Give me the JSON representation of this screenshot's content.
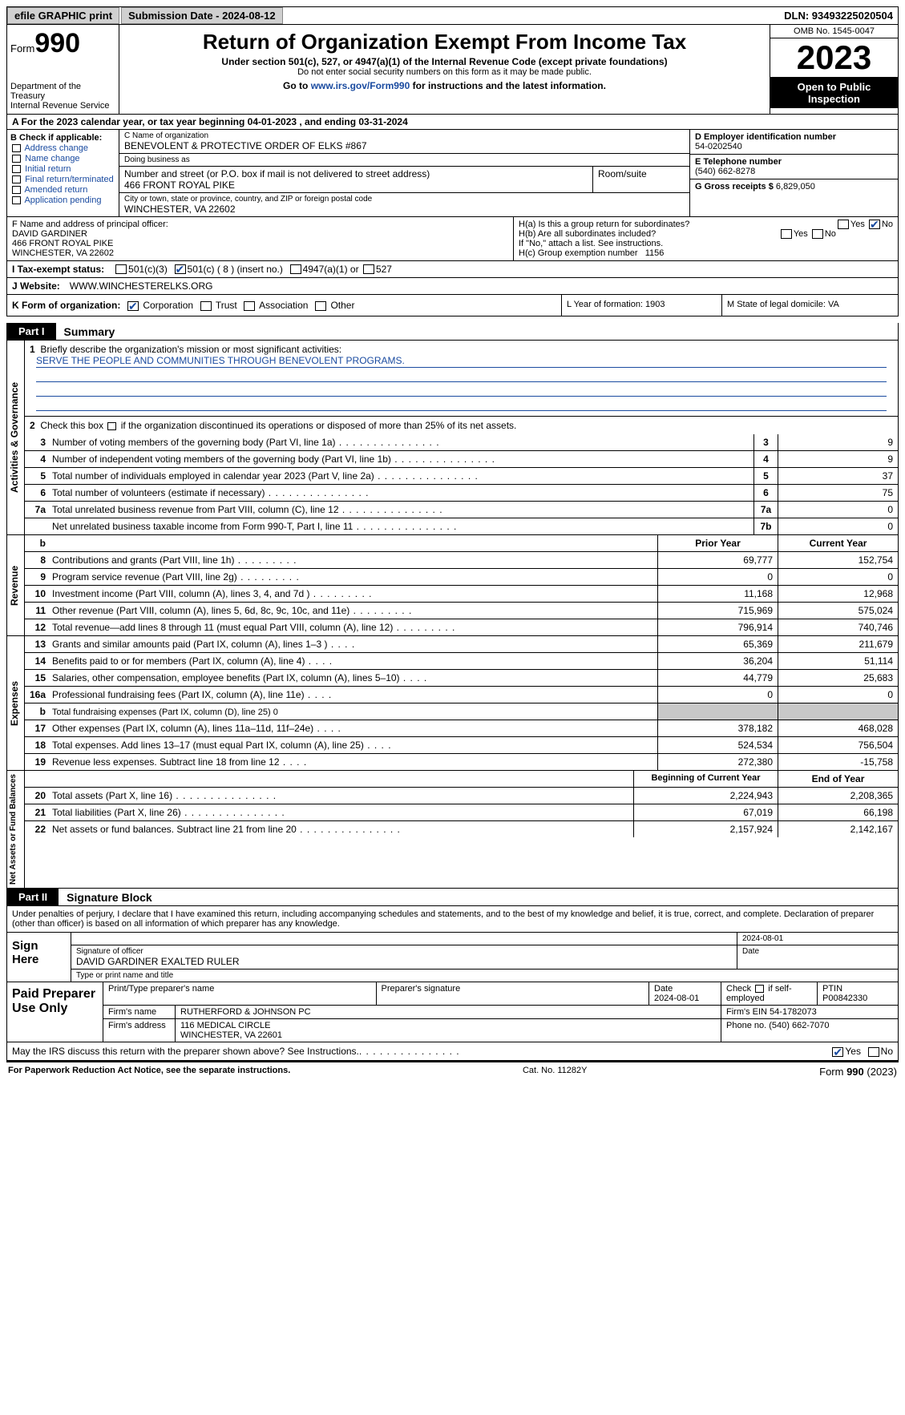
{
  "colors": {
    "link": "#1a4ba0",
    "black": "#000000",
    "grey_bg": "#c8c8c8",
    "btn_bg": "#d0d0d0"
  },
  "topbar": {
    "efile": "efile GRAPHIC print",
    "sub_date": "Submission Date - 2024-08-12",
    "dln": "DLN: 93493225020504"
  },
  "header": {
    "form_prefix": "Form",
    "form_num": "990",
    "dept": "Department of the Treasury\nInternal Revenue Service",
    "title": "Return of Organization Exempt From Income Tax",
    "sub1": "Under section 501(c), 527, or 4947(a)(1) of the Internal Revenue Code (except private foundations)",
    "sub2": "Do not enter social security numbers on this form as it may be made public.",
    "sub3_pre": "Go to ",
    "sub3_link": "www.irs.gov/Form990",
    "sub3_post": " for instructions and the latest information.",
    "omb": "OMB No. 1545-0047",
    "year": "2023",
    "inspection": "Open to Public Inspection",
    "period": "A For the 2023 calendar year, or tax year beginning 04-01-2023    , and ending 03-31-2024"
  },
  "sectionB": {
    "label": "B Check if applicable:",
    "opts": [
      "Address change",
      "Name change",
      "Initial return",
      "Final return/terminated",
      "Amended return",
      "Application pending"
    ]
  },
  "sectionC": {
    "name_label": "C Name of organization",
    "name": "BENEVOLENT & PROTECTIVE ORDER OF ELKS #867",
    "dba_label": "Doing business as",
    "dba": "",
    "addr_label": "Number and street (or P.O. box if mail is not delivered to street address)",
    "addr": "466 FRONT ROYAL PIKE",
    "room_label": "Room/suite",
    "city_label": "City or town, state or province, country, and ZIP or foreign postal code",
    "city": "WINCHESTER, VA  22602"
  },
  "sectionDEG": {
    "d_label": "D Employer identification number",
    "d_val": "54-0202540",
    "e_label": "E Telephone number",
    "e_val": "(540) 662-8278",
    "g_label": "G Gross receipts $",
    "g_val": "6,829,050"
  },
  "officer": {
    "label": "F  Name and address of principal officer:",
    "name": "DAVID GARDINER",
    "addr1": "466 FRONT ROYAL PIKE",
    "addr2": "WINCHESTER, VA  22602"
  },
  "sectionH": {
    "ha": "H(a)  Is this a group return for subordinates?",
    "ha_yes": "Yes",
    "ha_no": "No",
    "ha_checked": "No",
    "hb": "H(b)  Are all subordinates included?",
    "hb_note": "If \"No,\" attach a list. See instructions.",
    "hc": "H(c)  Group exemption number",
    "hc_val": "1156"
  },
  "taxExempt": {
    "label": "I    Tax-exempt status:",
    "o1": "501(c)(3)",
    "o2": "501(c) ( 8 ) (insert no.)",
    "o3": "4947(a)(1) or",
    "o4": "527",
    "checked": "o2"
  },
  "website": {
    "label": "J    Website:",
    "val": "WWW.WINCHESTERELKS.ORG"
  },
  "korg": {
    "label": "K Form of organization:",
    "opts": [
      "Corporation",
      "Trust",
      "Association",
      "Other"
    ],
    "checked": "Corporation",
    "L": "L Year of formation: 1903",
    "M": "M State of legal domicile: VA"
  },
  "partI": {
    "tab": "Part I",
    "title": "Summary",
    "q1": "Briefly describe the organization's mission or most significant activities:",
    "mission": "SERVE THE PEOPLE AND COMMUNITIES THROUGH BENEVOLENT PROGRAMS.",
    "q2": "Check this box       if the organization discontinued its operations or disposed of more than 25% of its net assets.",
    "rows_gov": [
      {
        "n": "3",
        "d": "Number of voting members of the governing body (Part VI, line 1a)",
        "mini": "3",
        "v": "9"
      },
      {
        "n": "4",
        "d": "Number of independent voting members of the governing body (Part VI, line 1b)",
        "mini": "4",
        "v": "9"
      },
      {
        "n": "5",
        "d": "Total number of individuals employed in calendar year 2023 (Part V, line 2a)",
        "mini": "5",
        "v": "37"
      },
      {
        "n": "6",
        "d": "Total number of volunteers (estimate if necessary)",
        "mini": "6",
        "v": "75"
      },
      {
        "n": "7a",
        "d": "Total unrelated business revenue from Part VIII, column (C), line 12",
        "mini": "7a",
        "v": "0"
      },
      {
        "n": "",
        "d": "Net unrelated business taxable income from Form 990-T, Part I, line 11",
        "mini": "7b",
        "v": "0"
      }
    ],
    "hdr_prior": "Prior Year",
    "hdr_current": "Current Year",
    "rows_rev": [
      {
        "n": "8",
        "d": "Contributions and grants (Part VIII, line 1h)",
        "p": "69,777",
        "c": "152,754"
      },
      {
        "n": "9",
        "d": "Program service revenue (Part VIII, line 2g)",
        "p": "0",
        "c": "0"
      },
      {
        "n": "10",
        "d": "Investment income (Part VIII, column (A), lines 3, 4, and 7d )",
        "p": "11,168",
        "c": "12,968"
      },
      {
        "n": "11",
        "d": "Other revenue (Part VIII, column (A), lines 5, 6d, 8c, 9c, 10c, and 11e)",
        "p": "715,969",
        "c": "575,024"
      },
      {
        "n": "12",
        "d": "Total revenue—add lines 8 through 11 (must equal Part VIII, column (A), line 12)",
        "p": "796,914",
        "c": "740,746"
      }
    ],
    "rows_exp": [
      {
        "n": "13",
        "d": "Grants and similar amounts paid (Part IX, column (A), lines 1–3 )",
        "p": "65,369",
        "c": "211,679"
      },
      {
        "n": "14",
        "d": "Benefits paid to or for members (Part IX, column (A), line 4)",
        "p": "36,204",
        "c": "51,114"
      },
      {
        "n": "15",
        "d": "Salaries, other compensation, employee benefits (Part IX, column (A), lines 5–10)",
        "p": "44,779",
        "c": "25,683"
      },
      {
        "n": "16a",
        "d": "Professional fundraising fees (Part IX, column (A), line 11e)",
        "p": "0",
        "c": "0"
      },
      {
        "n": "b",
        "d": "Total fundraising expenses (Part IX, column (D), line 25) 0",
        "grey": true
      },
      {
        "n": "17",
        "d": "Other expenses (Part IX, column (A), lines 11a–11d, 11f–24e)",
        "p": "378,182",
        "c": "468,028"
      },
      {
        "n": "18",
        "d": "Total expenses. Add lines 13–17 (must equal Part IX, column (A), line 25)",
        "p": "524,534",
        "c": "756,504"
      },
      {
        "n": "19",
        "d": "Revenue less expenses. Subtract line 18 from line 12",
        "p": "272,380",
        "c": "-15,758"
      }
    ],
    "hdr_beg": "Beginning of Current Year",
    "hdr_end": "End of Year",
    "rows_net": [
      {
        "n": "20",
        "d": "Total assets (Part X, line 16)",
        "p": "2,224,943",
        "c": "2,208,365"
      },
      {
        "n": "21",
        "d": "Total liabilities (Part X, line 26)",
        "p": "67,019",
        "c": "66,198"
      },
      {
        "n": "22",
        "d": "Net assets or fund balances. Subtract line 21 from line 20",
        "p": "2,157,924",
        "c": "2,142,167"
      }
    ],
    "side_gov": "Activities & Governance",
    "side_rev": "Revenue",
    "side_exp": "Expenses",
    "side_net": "Net Assets or Fund Balances"
  },
  "partII": {
    "tab": "Part II",
    "title": "Signature Block",
    "intro": "Under penalties of perjury, I declare that I have examined this return, including accompanying schedules and statements, and to the best of my knowledge and belief, it is true, correct, and complete. Declaration of preparer (other than officer) is based on all information of which preparer has any knowledge.",
    "sign_here": "Sign Here",
    "sig_officer_label": "Signature of officer",
    "sig_officer": "DAVID GARDINER  EXALTED RULER",
    "sig_date_label": "Date",
    "sig_date": "2024-08-01",
    "type_label": "Type or print name and title"
  },
  "preparer": {
    "label": "Paid Preparer Use Only",
    "name_label": "Print/Type preparer's name",
    "sig_label": "Preparer's signature",
    "date_label": "Date",
    "date": "2024-08-01",
    "self_label": "Check        if self-employed",
    "ptin_label": "PTIN",
    "ptin": "P00842330",
    "firm_name_label": "Firm's name",
    "firm_name": "RUTHERFORD & JOHNSON PC",
    "firm_ein_label": "Firm's EIN",
    "firm_ein": "54-1782073",
    "firm_addr_label": "Firm's address",
    "firm_addr1": "116 MEDICAL CIRCLE",
    "firm_addr2": "WINCHESTER, VA  22601",
    "phone_label": "Phone no.",
    "phone": "(540) 662-7070"
  },
  "discuss": {
    "q": "May the IRS discuss this return with the preparer shown above? See Instructions.",
    "yes": "Yes",
    "no": "No",
    "checked": "Yes"
  },
  "footer": {
    "l": "For Paperwork Reduction Act Notice, see the separate instructions.",
    "m": "Cat. No. 11282Y",
    "r": "Form 990 (2023)"
  }
}
